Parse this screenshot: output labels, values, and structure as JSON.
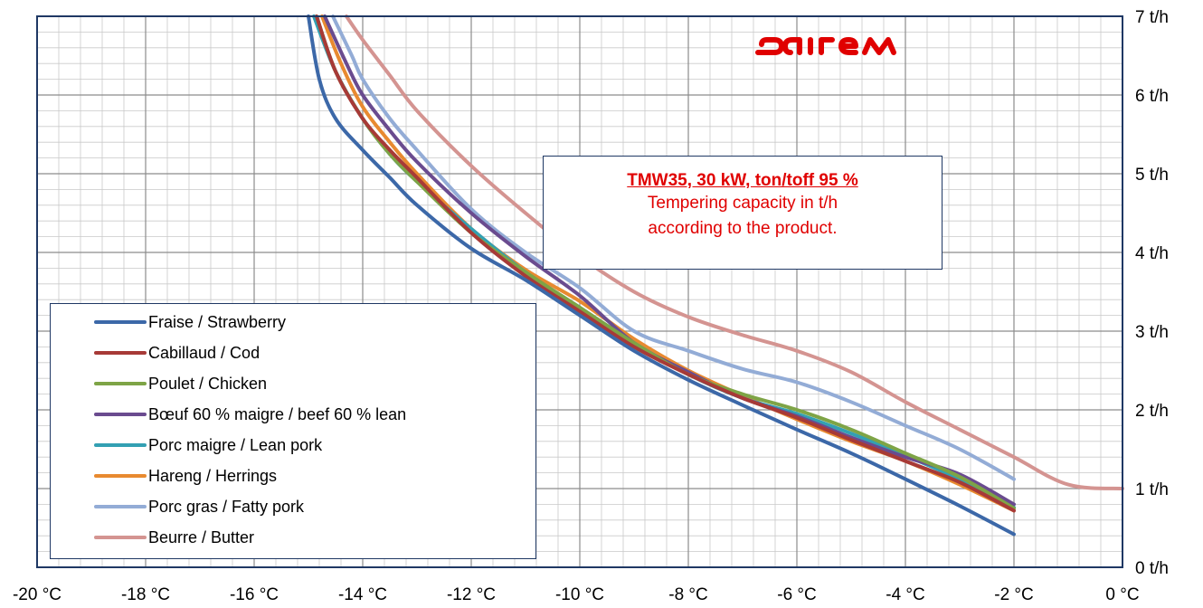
{
  "chart_data": {
    "type": "line",
    "x_unit": "°C",
    "xlim": [
      -20,
      0
    ],
    "x_ticks": [
      -20,
      -18,
      -16,
      -14,
      -12,
      -10,
      -8,
      -6,
      -4,
      -2,
      0
    ],
    "x_tick_labels": [
      "-20 °C",
      "-18 °C",
      "-16 °C",
      "-14 °C",
      "-12 °C",
      "-10 °C",
      "-8 °C",
      "-6 °C",
      "-4 °C",
      "-2 °C",
      "0 °C"
    ],
    "ylim": [
      0,
      7
    ],
    "y_ticks": [
      0,
      1,
      2,
      3,
      4,
      5,
      6,
      7
    ],
    "y_tick_labels": [
      "0 t/h",
      "1 t/h",
      "2 t/h",
      "3 t/h",
      "4 t/h",
      "5 t/h",
      "6 t/h",
      "7 t/h"
    ],
    "grid": true,
    "legend_position": "bottom-left",
    "series": [
      {
        "name": "Fraise / Strawberry",
        "color": "#3c68a8",
        "points": [
          [
            -15.0,
            7.0
          ],
          [
            -14.8,
            6.2
          ],
          [
            -14.5,
            5.7
          ],
          [
            -14.0,
            5.3
          ],
          [
            -13.5,
            4.95
          ],
          [
            -13.0,
            4.6
          ],
          [
            -12.0,
            4.05
          ],
          [
            -11.0,
            3.65
          ],
          [
            -10.0,
            3.2
          ],
          [
            -9.0,
            2.75
          ],
          [
            -8.0,
            2.38
          ],
          [
            -7.0,
            2.06
          ],
          [
            -6.0,
            1.75
          ],
          [
            -5.0,
            1.45
          ],
          [
            -4.0,
            1.12
          ],
          [
            -3.0,
            0.78
          ],
          [
            -2.0,
            0.42
          ]
        ]
      },
      {
        "name": "Cabillaud / Cod",
        "color": "#a73a37",
        "points": [
          [
            -14.85,
            7.0
          ],
          [
            -14.5,
            6.3
          ],
          [
            -14.0,
            5.7
          ],
          [
            -13.5,
            5.3
          ],
          [
            -13.0,
            4.95
          ],
          [
            -12.0,
            4.25
          ],
          [
            -11.0,
            3.7
          ],
          [
            -10.0,
            3.25
          ],
          [
            -9.0,
            2.8
          ],
          [
            -8.0,
            2.45
          ],
          [
            -7.0,
            2.15
          ],
          [
            -6.0,
            1.9
          ],
          [
            -5.0,
            1.62
          ],
          [
            -4.0,
            1.35
          ],
          [
            -3.0,
            1.08
          ],
          [
            -2.0,
            0.72
          ]
        ]
      },
      {
        "name": "Poulet / Chicken",
        "color": "#7ea446",
        "points": [
          [
            -14.85,
            7.0
          ],
          [
            -14.5,
            6.3
          ],
          [
            -14.0,
            5.7
          ],
          [
            -13.5,
            5.25
          ],
          [
            -13.0,
            4.9
          ],
          [
            -12.0,
            4.25
          ],
          [
            -11.0,
            3.75
          ],
          [
            -10.0,
            3.3
          ],
          [
            -9.0,
            2.85
          ],
          [
            -8.0,
            2.45
          ],
          [
            -7.0,
            2.2
          ],
          [
            -6.0,
            2.0
          ],
          [
            -5.0,
            1.75
          ],
          [
            -4.0,
            1.45
          ],
          [
            -3.0,
            1.15
          ],
          [
            -2.0,
            0.75
          ]
        ]
      },
      {
        "name": "Bœuf 60 % maigre / beef 60 % lean",
        "color": "#6a4b8f",
        "points": [
          [
            -14.7,
            7.0
          ],
          [
            -14.3,
            6.4
          ],
          [
            -14.0,
            6.0
          ],
          [
            -13.5,
            5.55
          ],
          [
            -13.0,
            5.15
          ],
          [
            -12.0,
            4.5
          ],
          [
            -11.0,
            3.95
          ],
          [
            -10.0,
            3.45
          ],
          [
            -9.0,
            2.85
          ],
          [
            -8.0,
            2.48
          ],
          [
            -7.0,
            2.15
          ],
          [
            -6.0,
            1.92
          ],
          [
            -5.0,
            1.65
          ],
          [
            -4.0,
            1.4
          ],
          [
            -3.0,
            1.18
          ],
          [
            -2.0,
            0.8
          ]
        ]
      },
      {
        "name": "Porc maigre / Lean pork",
        "color": "#33a0b3",
        "points": [
          [
            -14.9,
            7.0
          ],
          [
            -14.5,
            6.3
          ],
          [
            -14.0,
            5.7
          ],
          [
            -13.5,
            5.25
          ],
          [
            -13.0,
            4.9
          ],
          [
            -12.0,
            4.3
          ],
          [
            -11.0,
            3.75
          ],
          [
            -10.0,
            3.3
          ],
          [
            -9.0,
            2.85
          ],
          [
            -8.0,
            2.45
          ],
          [
            -7.0,
            2.15
          ],
          [
            -6.0,
            1.95
          ],
          [
            -5.0,
            1.7
          ],
          [
            -4.0,
            1.42
          ],
          [
            -3.0,
            1.12
          ],
          [
            -2.0,
            0.76
          ]
        ]
      },
      {
        "name": "Hareng / Herrings",
        "color": "#e88a30",
        "points": [
          [
            -14.75,
            7.0
          ],
          [
            -14.4,
            6.4
          ],
          [
            -14.0,
            5.85
          ],
          [
            -13.5,
            5.4
          ],
          [
            -13.0,
            5.0
          ],
          [
            -12.0,
            4.3
          ],
          [
            -11.0,
            3.78
          ],
          [
            -10.0,
            3.38
          ],
          [
            -9.0,
            2.9
          ],
          [
            -8.0,
            2.5
          ],
          [
            -7.0,
            2.18
          ],
          [
            -6.0,
            1.88
          ],
          [
            -5.0,
            1.6
          ],
          [
            -4.0,
            1.35
          ],
          [
            -3.0,
            1.05
          ],
          [
            -2.0,
            0.72
          ]
        ]
      },
      {
        "name": "Porc gras / Fatty pork",
        "color": "#93acd6",
        "points": [
          [
            -14.55,
            7.0
          ],
          [
            -14.2,
            6.5
          ],
          [
            -14.0,
            6.2
          ],
          [
            -13.5,
            5.7
          ],
          [
            -13.0,
            5.3
          ],
          [
            -12.0,
            4.55
          ],
          [
            -11.0,
            4.0
          ],
          [
            -10.0,
            3.55
          ],
          [
            -9.0,
            3.0
          ],
          [
            -8.0,
            2.75
          ],
          [
            -7.0,
            2.52
          ],
          [
            -6.0,
            2.35
          ],
          [
            -5.0,
            2.1
          ],
          [
            -4.0,
            1.8
          ],
          [
            -3.0,
            1.5
          ],
          [
            -2.0,
            1.12
          ]
        ]
      },
      {
        "name": "Beurre / Butter",
        "color": "#d49491",
        "points": [
          [
            -14.3,
            7.0
          ],
          [
            -14.0,
            6.7
          ],
          [
            -13.5,
            6.25
          ],
          [
            -13.0,
            5.8
          ],
          [
            -12.0,
            5.1
          ],
          [
            -11.0,
            4.5
          ],
          [
            -10.0,
            3.95
          ],
          [
            -9.0,
            3.5
          ],
          [
            -8.0,
            3.18
          ],
          [
            -7.0,
            2.95
          ],
          [
            -6.0,
            2.75
          ],
          [
            -5.0,
            2.48
          ],
          [
            -4.0,
            2.1
          ],
          [
            -3.0,
            1.75
          ],
          [
            -2.0,
            1.4
          ],
          [
            -1.0,
            1.05
          ],
          [
            0.0,
            1.0
          ]
        ]
      }
    ]
  },
  "annotation": {
    "title": "TMW35, 30 kW,  ton/toff  95 %",
    "line1": "Tempering capacity in t/h",
    "line2": "according to the product.",
    "color": "#e00000"
  },
  "logo": {
    "text": "sairem",
    "color": "#e00000"
  }
}
